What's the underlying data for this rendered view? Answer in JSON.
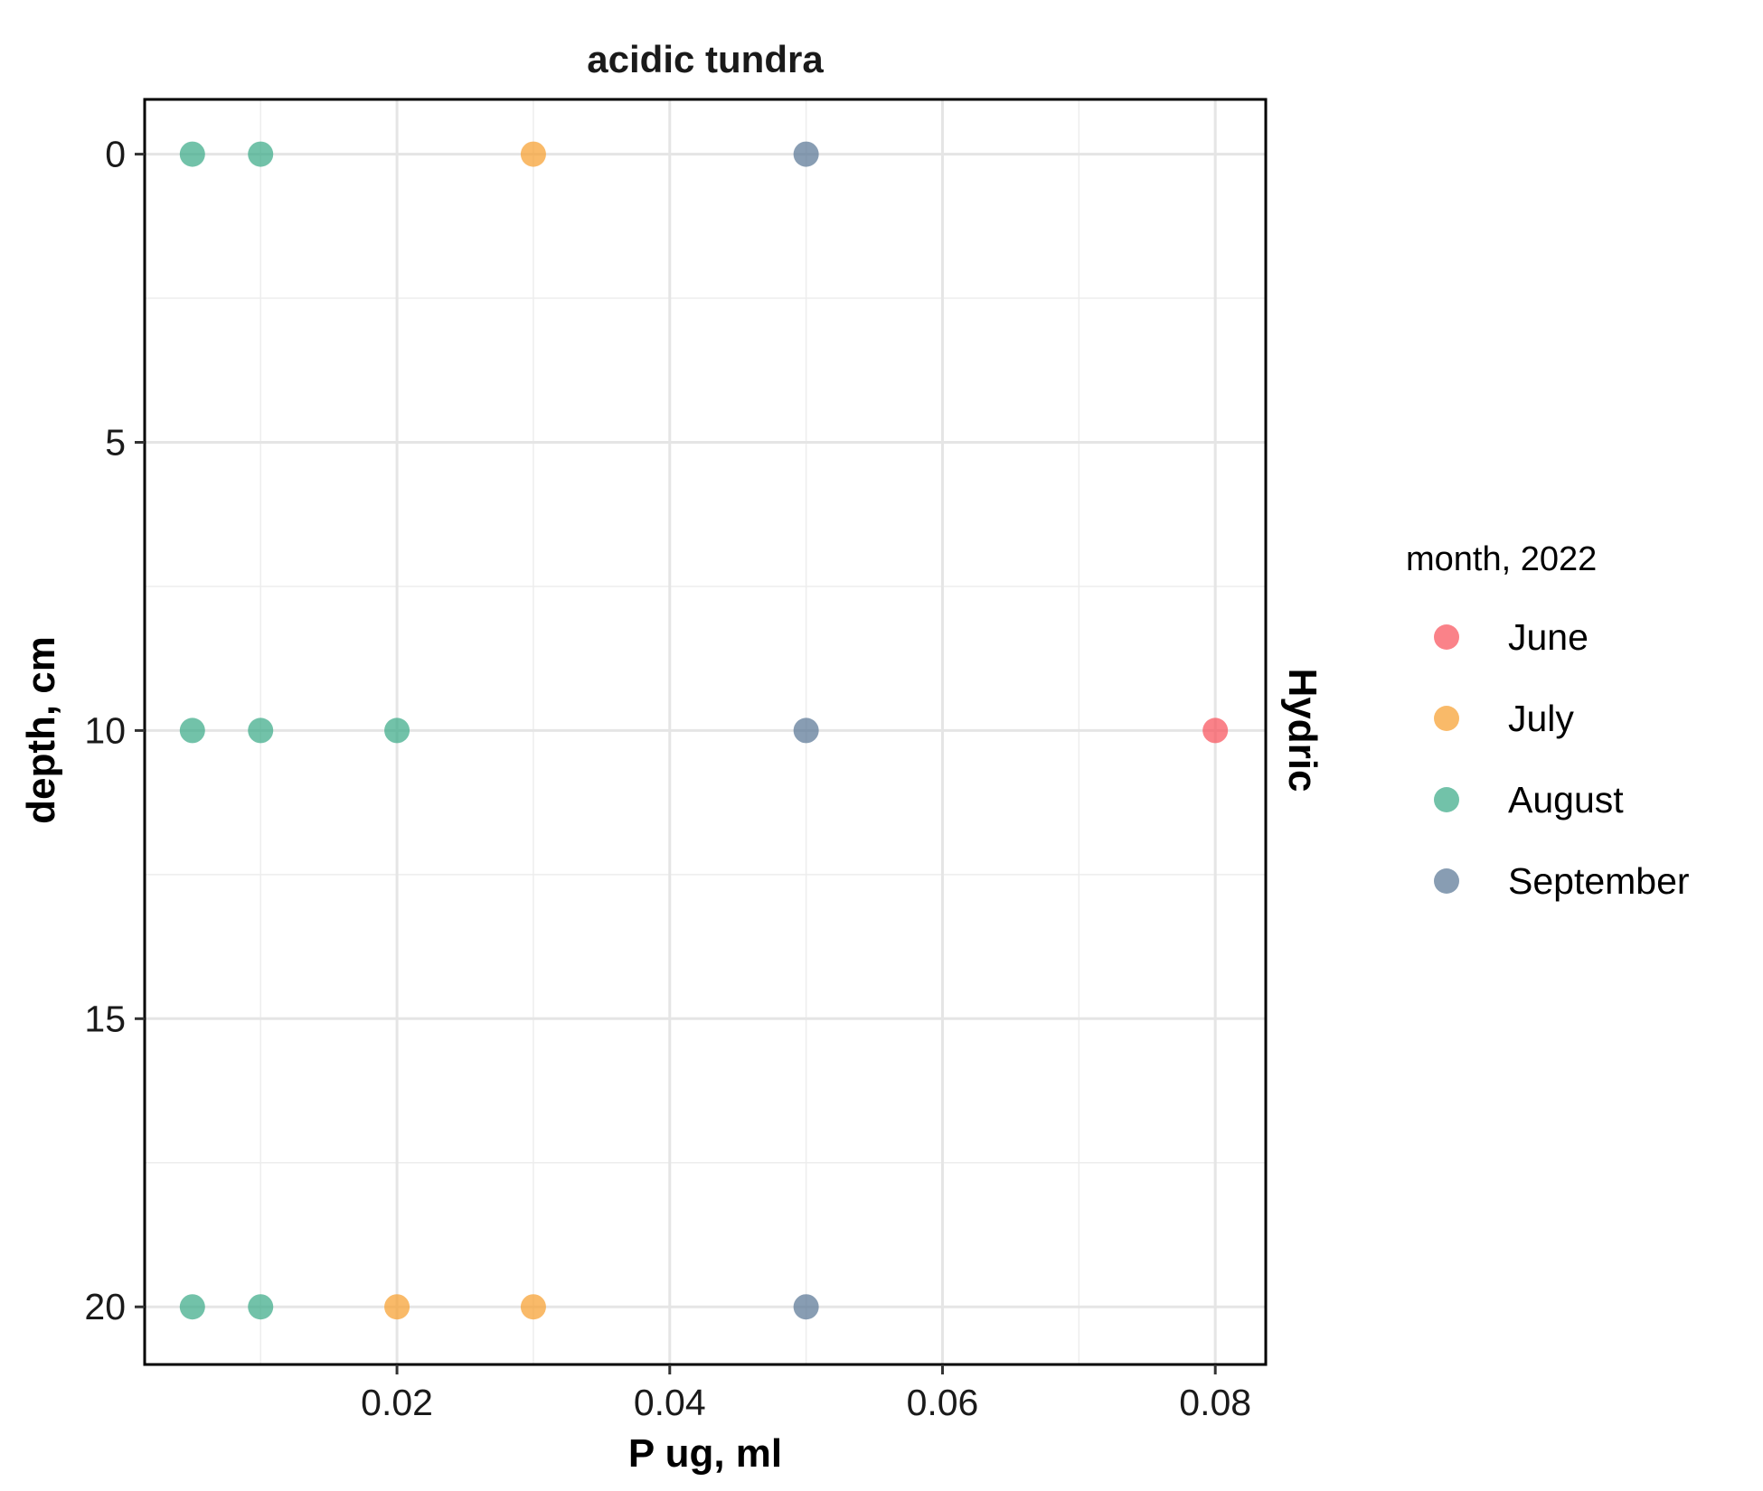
{
  "chart_data": {
    "type": "scatter",
    "title": "acidic tundra",
    "strip_label": "Hydric",
    "xlabel": "P ug, ml",
    "ylabel": "depth, cm",
    "xlim": [
      0.0015,
      0.0837
    ],
    "ylim": [
      21.0,
      -0.95
    ],
    "y_reversed": true,
    "x_ticks": [
      0.02,
      0.04,
      0.06,
      0.08
    ],
    "x_tick_labels": [
      "0.02",
      "0.04",
      "0.06",
      "0.08"
    ],
    "x_minor": [
      0.01,
      0.03,
      0.05,
      0.07
    ],
    "y_ticks": [
      0,
      5,
      10,
      15,
      20
    ],
    "y_tick_labels": [
      "0",
      "5",
      "10",
      "15",
      "20"
    ],
    "y_minor": [
      2.5,
      7.5,
      12.5,
      17.5
    ],
    "grid": true,
    "legend": {
      "title": "month, 2022",
      "position": "right"
    },
    "series": [
      {
        "name": "June",
        "color": "#F8525C",
        "points": [
          {
            "x": 0.08,
            "y": 10
          }
        ]
      },
      {
        "name": "July",
        "color": "#F79F2F",
        "points": [
          {
            "x": 0.03,
            "y": 0
          },
          {
            "x": 0.02,
            "y": 20
          },
          {
            "x": 0.03,
            "y": 20
          }
        ]
      },
      {
        "name": "August",
        "color": "#3BAA88",
        "points": [
          {
            "x": 0.005,
            "y": 0
          },
          {
            "x": 0.01,
            "y": 0
          },
          {
            "x": 0.005,
            "y": 10
          },
          {
            "x": 0.01,
            "y": 10
          },
          {
            "x": 0.02,
            "y": 10
          },
          {
            "x": 0.005,
            "y": 20
          },
          {
            "x": 0.01,
            "y": 20
          }
        ]
      },
      {
        "name": "September",
        "color": "#5A7796",
        "points": [
          {
            "x": 0.05,
            "y": 0
          },
          {
            "x": 0.05,
            "y": 10
          },
          {
            "x": 0.05,
            "y": 20
          }
        ]
      }
    ]
  }
}
